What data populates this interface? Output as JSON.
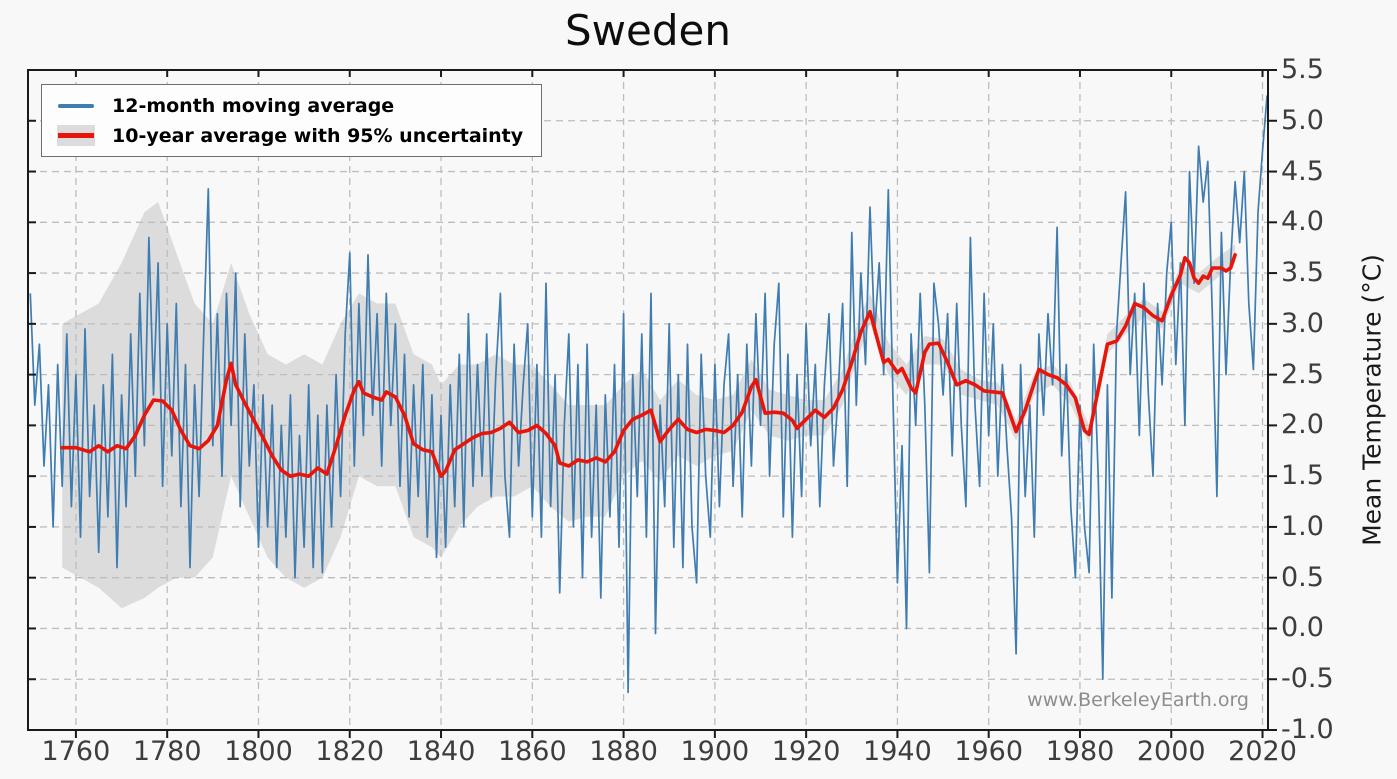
{
  "figure": {
    "title": "Sweden",
    "watermark": "www.BerkeleyEarth.org",
    "y_axis_title": "Mean Temperature (°C)"
  },
  "legend": {
    "items": [
      {
        "label": "12-month moving average",
        "swatch": "blue-line",
        "color": "#3f7cb0"
      },
      {
        "label": "10-year average with 95% uncertainty",
        "swatch": "red-line-on-band",
        "color": "#e8150a",
        "band_color": "#dcdcdc"
      }
    ]
  },
  "colors": {
    "background": "#f8f8f8",
    "blue_line": "#3f7cb0",
    "red_line": "#e8150a",
    "band": "#dcdcdc",
    "grid": "#bdbdbd",
    "spine": "#1a1a1a",
    "tick_label": "#3d3d3d",
    "watermark": "#8d8d8d"
  },
  "chart_data": {
    "type": "line",
    "title": "Sweden",
    "xlabel": "",
    "ylabel": "Mean Temperature (°C)",
    "xlim": [
      1749.5,
      2021.2
    ],
    "ylim": [
      -1.0,
      5.5
    ],
    "xticks": [
      1760,
      1780,
      1800,
      1820,
      1840,
      1860,
      1880,
      1900,
      1920,
      1940,
      1960,
      1980,
      2000,
      2020
    ],
    "yticks": [
      -1.0,
      -0.5,
      0.0,
      0.5,
      1.0,
      1.5,
      2.0,
      2.5,
      3.0,
      3.5,
      4.0,
      4.5,
      5.0,
      5.5
    ],
    "grid": true,
    "legend_position": "upper-left",
    "series": [
      {
        "name": "12-month moving average",
        "kind": "line",
        "color": "#3f7cb0",
        "x_start": 1750,
        "x_step": 1,
        "values": [
          3.3,
          2.2,
          2.8,
          1.6,
          2.4,
          1.0,
          2.6,
          1.4,
          2.9,
          1.2,
          2.5,
          0.9,
          2.95,
          1.3,
          2.2,
          0.75,
          2.4,
          1.1,
          2.7,
          0.6,
          2.3,
          1.2,
          2.9,
          1.5,
          3.3,
          1.8,
          3.85,
          2.3,
          3.6,
          1.4,
          3.0,
          1.7,
          3.2,
          1.2,
          2.6,
          0.6,
          2.4,
          1.3,
          2.9,
          4.33,
          1.8,
          3.1,
          1.5,
          3.3,
          2.0,
          3.5,
          1.2,
          2.9,
          1.6,
          2.4,
          0.8,
          2.3,
          1.0,
          2.2,
          0.6,
          2.0,
          0.9,
          2.3,
          0.5,
          1.9,
          0.8,
          2.4,
          0.6,
          2.1,
          0.55,
          2.2,
          1.0,
          2.5,
          1.3,
          2.9,
          3.7,
          1.6,
          3.2,
          1.9,
          3.68,
          2.1,
          3.1,
          1.6,
          3.3,
          2.0,
          3.0,
          1.4,
          2.7,
          1.1,
          2.4,
          1.3,
          2.6,
          0.9,
          2.3,
          0.7,
          2.1,
          0.8,
          2.4,
          1.2,
          2.7,
          1.0,
          3.1,
          1.4,
          2.6,
          1.5,
          2.9,
          1.3,
          2.5,
          3.3,
          1.5,
          0.9,
          2.8,
          1.6,
          2.4,
          3.0,
          1.1,
          2.6,
          0.9,
          3.4,
          1.2,
          2.5,
          0.35,
          2.0,
          2.9,
          1.0,
          2.6,
          0.5,
          2.8,
          0.9,
          2.2,
          0.3,
          2.3,
          1.1,
          2.6,
          0.8,
          3.1,
          -0.63,
          2.5,
          1.3,
          2.9,
          0.9,
          3.3,
          -0.05,
          2.2,
          1.2,
          3.0,
          0.8,
          2.5,
          0.6,
          2.8,
          1.0,
          0.45,
          2.7,
          1.5,
          0.9,
          2.6,
          1.2,
          2.4,
          2.9,
          1.4,
          2.5,
          1.1,
          2.8,
          1.6,
          3.1,
          2.0,
          3.3,
          1.5,
          2.8,
          3.4,
          1.1,
          2.7,
          0.9,
          2.5,
          1.3,
          3.0,
          1.8,
          2.6,
          1.2,
          2.4,
          3.1,
          1.6,
          2.3,
          3.2,
          1.4,
          3.9,
          2.2,
          3.5,
          2.6,
          4.15,
          2.9,
          3.6,
          2.5,
          4.32,
          2.3,
          0.45,
          1.8,
          0.0,
          2.9,
          2.0,
          3.3,
          2.2,
          0.55,
          3.4,
          3.0,
          2.3,
          3.1,
          1.7,
          3.2,
          2.0,
          1.2,
          3.85,
          2.2,
          1.4,
          3.3,
          1.9,
          3.0,
          1.5,
          2.6,
          1.8,
          1.1,
          -0.25,
          2.6,
          1.3,
          2.2,
          0.9,
          2.9,
          2.1,
          3.1,
          2.4,
          3.95,
          1.7,
          2.6,
          1.2,
          0.5,
          2.2,
          1.0,
          0.55,
          2.8,
          1.5,
          -0.5,
          2.4,
          0.3,
          2.9,
          3.6,
          4.3,
          2.5,
          3.3,
          1.9,
          3.4,
          2.3,
          1.5,
          3.2,
          2.4,
          3.5,
          4.0,
          2.6,
          3.6,
          2.0,
          4.5,
          3.4,
          4.75,
          4.2,
          4.6,
          3.1,
          1.3,
          3.9,
          2.5,
          3.6,
          4.4,
          3.8,
          4.5,
          3.2,
          2.55,
          4.1,
          4.7,
          5.25
        ]
      },
      {
        "name": "10-year average with 95% uncertainty",
        "kind": "line",
        "color": "#e8150a",
        "points": [
          [
            1757,
            1.78
          ],
          [
            1760,
            1.78
          ],
          [
            1763,
            1.74
          ],
          [
            1765,
            1.8
          ],
          [
            1767,
            1.74
          ],
          [
            1769,
            1.8
          ],
          [
            1771,
            1.77
          ],
          [
            1773,
            1.9
          ],
          [
            1775,
            2.1
          ],
          [
            1777,
            2.25
          ],
          [
            1779,
            2.24
          ],
          [
            1781,
            2.15
          ],
          [
            1783,
            1.95
          ],
          [
            1785,
            1.8
          ],
          [
            1787,
            1.77
          ],
          [
            1789,
            1.85
          ],
          [
            1791,
            2.0
          ],
          [
            1793,
            2.45
          ],
          [
            1794,
            2.61
          ],
          [
            1795,
            2.4
          ],
          [
            1797,
            2.22
          ],
          [
            1799,
            2.05
          ],
          [
            1801,
            1.88
          ],
          [
            1803,
            1.7
          ],
          [
            1805,
            1.56
          ],
          [
            1807,
            1.5
          ],
          [
            1809,
            1.52
          ],
          [
            1811,
            1.5
          ],
          [
            1813,
            1.58
          ],
          [
            1815,
            1.52
          ],
          [
            1817,
            1.8
          ],
          [
            1819,
            2.1
          ],
          [
            1821,
            2.35
          ],
          [
            1822,
            2.43
          ],
          [
            1823,
            2.32
          ],
          [
            1825,
            2.28
          ],
          [
            1827,
            2.25
          ],
          [
            1828,
            2.33
          ],
          [
            1830,
            2.28
          ],
          [
            1832,
            2.1
          ],
          [
            1834,
            1.82
          ],
          [
            1836,
            1.76
          ],
          [
            1838,
            1.74
          ],
          [
            1840,
            1.5
          ],
          [
            1841,
            1.55
          ],
          [
            1843,
            1.76
          ],
          [
            1845,
            1.82
          ],
          [
            1847,
            1.88
          ],
          [
            1849,
            1.92
          ],
          [
            1851,
            1.93
          ],
          [
            1853,
            1.97
          ],
          [
            1855,
            2.03
          ],
          [
            1857,
            1.93
          ],
          [
            1859,
            1.95
          ],
          [
            1861,
            2.0
          ],
          [
            1863,
            1.92
          ],
          [
            1865,
            1.8
          ],
          [
            1866,
            1.63
          ],
          [
            1868,
            1.6
          ],
          [
            1870,
            1.66
          ],
          [
            1872,
            1.64
          ],
          [
            1874,
            1.68
          ],
          [
            1876,
            1.64
          ],
          [
            1878,
            1.74
          ],
          [
            1880,
            1.95
          ],
          [
            1882,
            2.06
          ],
          [
            1884,
            2.1
          ],
          [
            1886,
            2.15
          ],
          [
            1888,
            1.84
          ],
          [
            1890,
            1.96
          ],
          [
            1892,
            2.06
          ],
          [
            1894,
            1.96
          ],
          [
            1896,
            1.93
          ],
          [
            1898,
            1.96
          ],
          [
            1900,
            1.95
          ],
          [
            1902,
            1.93
          ],
          [
            1904,
            2.0
          ],
          [
            1906,
            2.13
          ],
          [
            1908,
            2.38
          ],
          [
            1909,
            2.45
          ],
          [
            1911,
            2.12
          ],
          [
            1913,
            2.13
          ],
          [
            1915,
            2.12
          ],
          [
            1917,
            2.05
          ],
          [
            1918,
            1.97
          ],
          [
            1920,
            2.06
          ],
          [
            1922,
            2.15
          ],
          [
            1924,
            2.08
          ],
          [
            1926,
            2.17
          ],
          [
            1928,
            2.35
          ],
          [
            1930,
            2.62
          ],
          [
            1932,
            2.92
          ],
          [
            1934,
            3.12
          ],
          [
            1935,
            2.95
          ],
          [
            1936,
            2.78
          ],
          [
            1937,
            2.62
          ],
          [
            1938,
            2.65
          ],
          [
            1940,
            2.52
          ],
          [
            1941,
            2.56
          ],
          [
            1943,
            2.37
          ],
          [
            1944,
            2.32
          ],
          [
            1946,
            2.72
          ],
          [
            1947,
            2.8
          ],
          [
            1949,
            2.81
          ],
          [
            1951,
            2.62
          ],
          [
            1953,
            2.4
          ],
          [
            1955,
            2.44
          ],
          [
            1957,
            2.4
          ],
          [
            1959,
            2.34
          ],
          [
            1961,
            2.33
          ],
          [
            1963,
            2.32
          ],
          [
            1964,
            2.2
          ],
          [
            1966,
            1.94
          ],
          [
            1968,
            2.15
          ],
          [
            1970,
            2.42
          ],
          [
            1971,
            2.55
          ],
          [
            1973,
            2.5
          ],
          [
            1975,
            2.47
          ],
          [
            1977,
            2.4
          ],
          [
            1979,
            2.27
          ],
          [
            1980,
            2.1
          ],
          [
            1981,
            1.95
          ],
          [
            1982,
            1.91
          ],
          [
            1984,
            2.35
          ],
          [
            1986,
            2.8
          ],
          [
            1988,
            2.83
          ],
          [
            1990,
            2.98
          ],
          [
            1992,
            3.2
          ],
          [
            1994,
            3.16
          ],
          [
            1996,
            3.08
          ],
          [
            1998,
            3.03
          ],
          [
            2000,
            3.28
          ],
          [
            2002,
            3.48
          ],
          [
            2003,
            3.65
          ],
          [
            2004,
            3.6
          ],
          [
            2005,
            3.45
          ],
          [
            2006,
            3.4
          ],
          [
            2007,
            3.47
          ],
          [
            2008,
            3.45
          ],
          [
            2009,
            3.55
          ],
          [
            2011,
            3.55
          ],
          [
            2012,
            3.52
          ],
          [
            2013,
            3.55
          ],
          [
            2014,
            3.68
          ]
        ]
      },
      {
        "name": "95% uncertainty band",
        "kind": "band",
        "color": "#dcdcdc",
        "points": [
          [
            1757,
            0.6,
            3.0
          ],
          [
            1765,
            0.4,
            3.2
          ],
          [
            1770,
            0.2,
            3.6
          ],
          [
            1775,
            0.3,
            4.1
          ],
          [
            1778,
            0.4,
            4.2
          ],
          [
            1782,
            0.5,
            3.7
          ],
          [
            1786,
            0.5,
            3.2
          ],
          [
            1790,
            0.7,
            3.0
          ],
          [
            1794,
            1.5,
            3.6
          ],
          [
            1798,
            1.1,
            3.1
          ],
          [
            1802,
            0.7,
            2.7
          ],
          [
            1806,
            0.5,
            2.6
          ],
          [
            1810,
            0.4,
            2.7
          ],
          [
            1814,
            0.5,
            2.6
          ],
          [
            1818,
            0.9,
            3.0
          ],
          [
            1822,
            1.5,
            3.3
          ],
          [
            1826,
            1.4,
            3.2
          ],
          [
            1830,
            1.4,
            3.2
          ],
          [
            1834,
            0.9,
            2.7
          ],
          [
            1838,
            0.8,
            2.6
          ],
          [
            1840,
            0.7,
            2.4
          ],
          [
            1844,
            1.0,
            2.6
          ],
          [
            1848,
            1.2,
            2.6
          ],
          [
            1852,
            1.3,
            2.7
          ],
          [
            1856,
            1.3,
            2.6
          ],
          [
            1860,
            1.4,
            2.6
          ],
          [
            1864,
            1.2,
            2.4
          ],
          [
            1868,
            1.05,
            2.2
          ],
          [
            1872,
            1.1,
            2.2
          ],
          [
            1876,
            1.1,
            2.2
          ],
          [
            1880,
            1.5,
            2.4
          ],
          [
            1884,
            1.65,
            2.55
          ],
          [
            1888,
            1.45,
            2.25
          ],
          [
            1892,
            1.7,
            2.45
          ],
          [
            1896,
            1.6,
            2.3
          ],
          [
            1900,
            1.7,
            2.25
          ],
          [
            1904,
            1.75,
            2.3
          ],
          [
            1908,
            2.15,
            2.65
          ],
          [
            1912,
            1.9,
            2.35
          ],
          [
            1916,
            1.85,
            2.3
          ],
          [
            1920,
            1.9,
            2.25
          ],
          [
            1924,
            1.9,
            2.25
          ],
          [
            1928,
            2.2,
            2.55
          ],
          [
            1932,
            2.75,
            3.1
          ],
          [
            1934,
            3.0,
            3.3
          ],
          [
            1938,
            2.5,
            2.82
          ],
          [
            1942,
            2.3,
            2.6
          ],
          [
            1946,
            2.6,
            2.88
          ],
          [
            1950,
            2.6,
            2.85
          ],
          [
            1954,
            2.3,
            2.55
          ],
          [
            1958,
            2.25,
            2.45
          ],
          [
            1962,
            2.2,
            2.42
          ],
          [
            1966,
            1.85,
            2.05
          ],
          [
            1970,
            2.3,
            2.52
          ],
          [
            1974,
            2.4,
            2.6
          ],
          [
            1978,
            2.2,
            2.42
          ],
          [
            1982,
            1.82,
            2.0
          ],
          [
            1986,
            2.7,
            2.9
          ],
          [
            1990,
            2.9,
            3.08
          ],
          [
            1994,
            3.07,
            3.25
          ],
          [
            1998,
            2.95,
            3.12
          ],
          [
            2002,
            3.4,
            3.58
          ],
          [
            2006,
            3.3,
            3.5
          ],
          [
            2010,
            3.45,
            3.65
          ],
          [
            2014,
            3.6,
            3.78
          ]
        ]
      }
    ]
  }
}
